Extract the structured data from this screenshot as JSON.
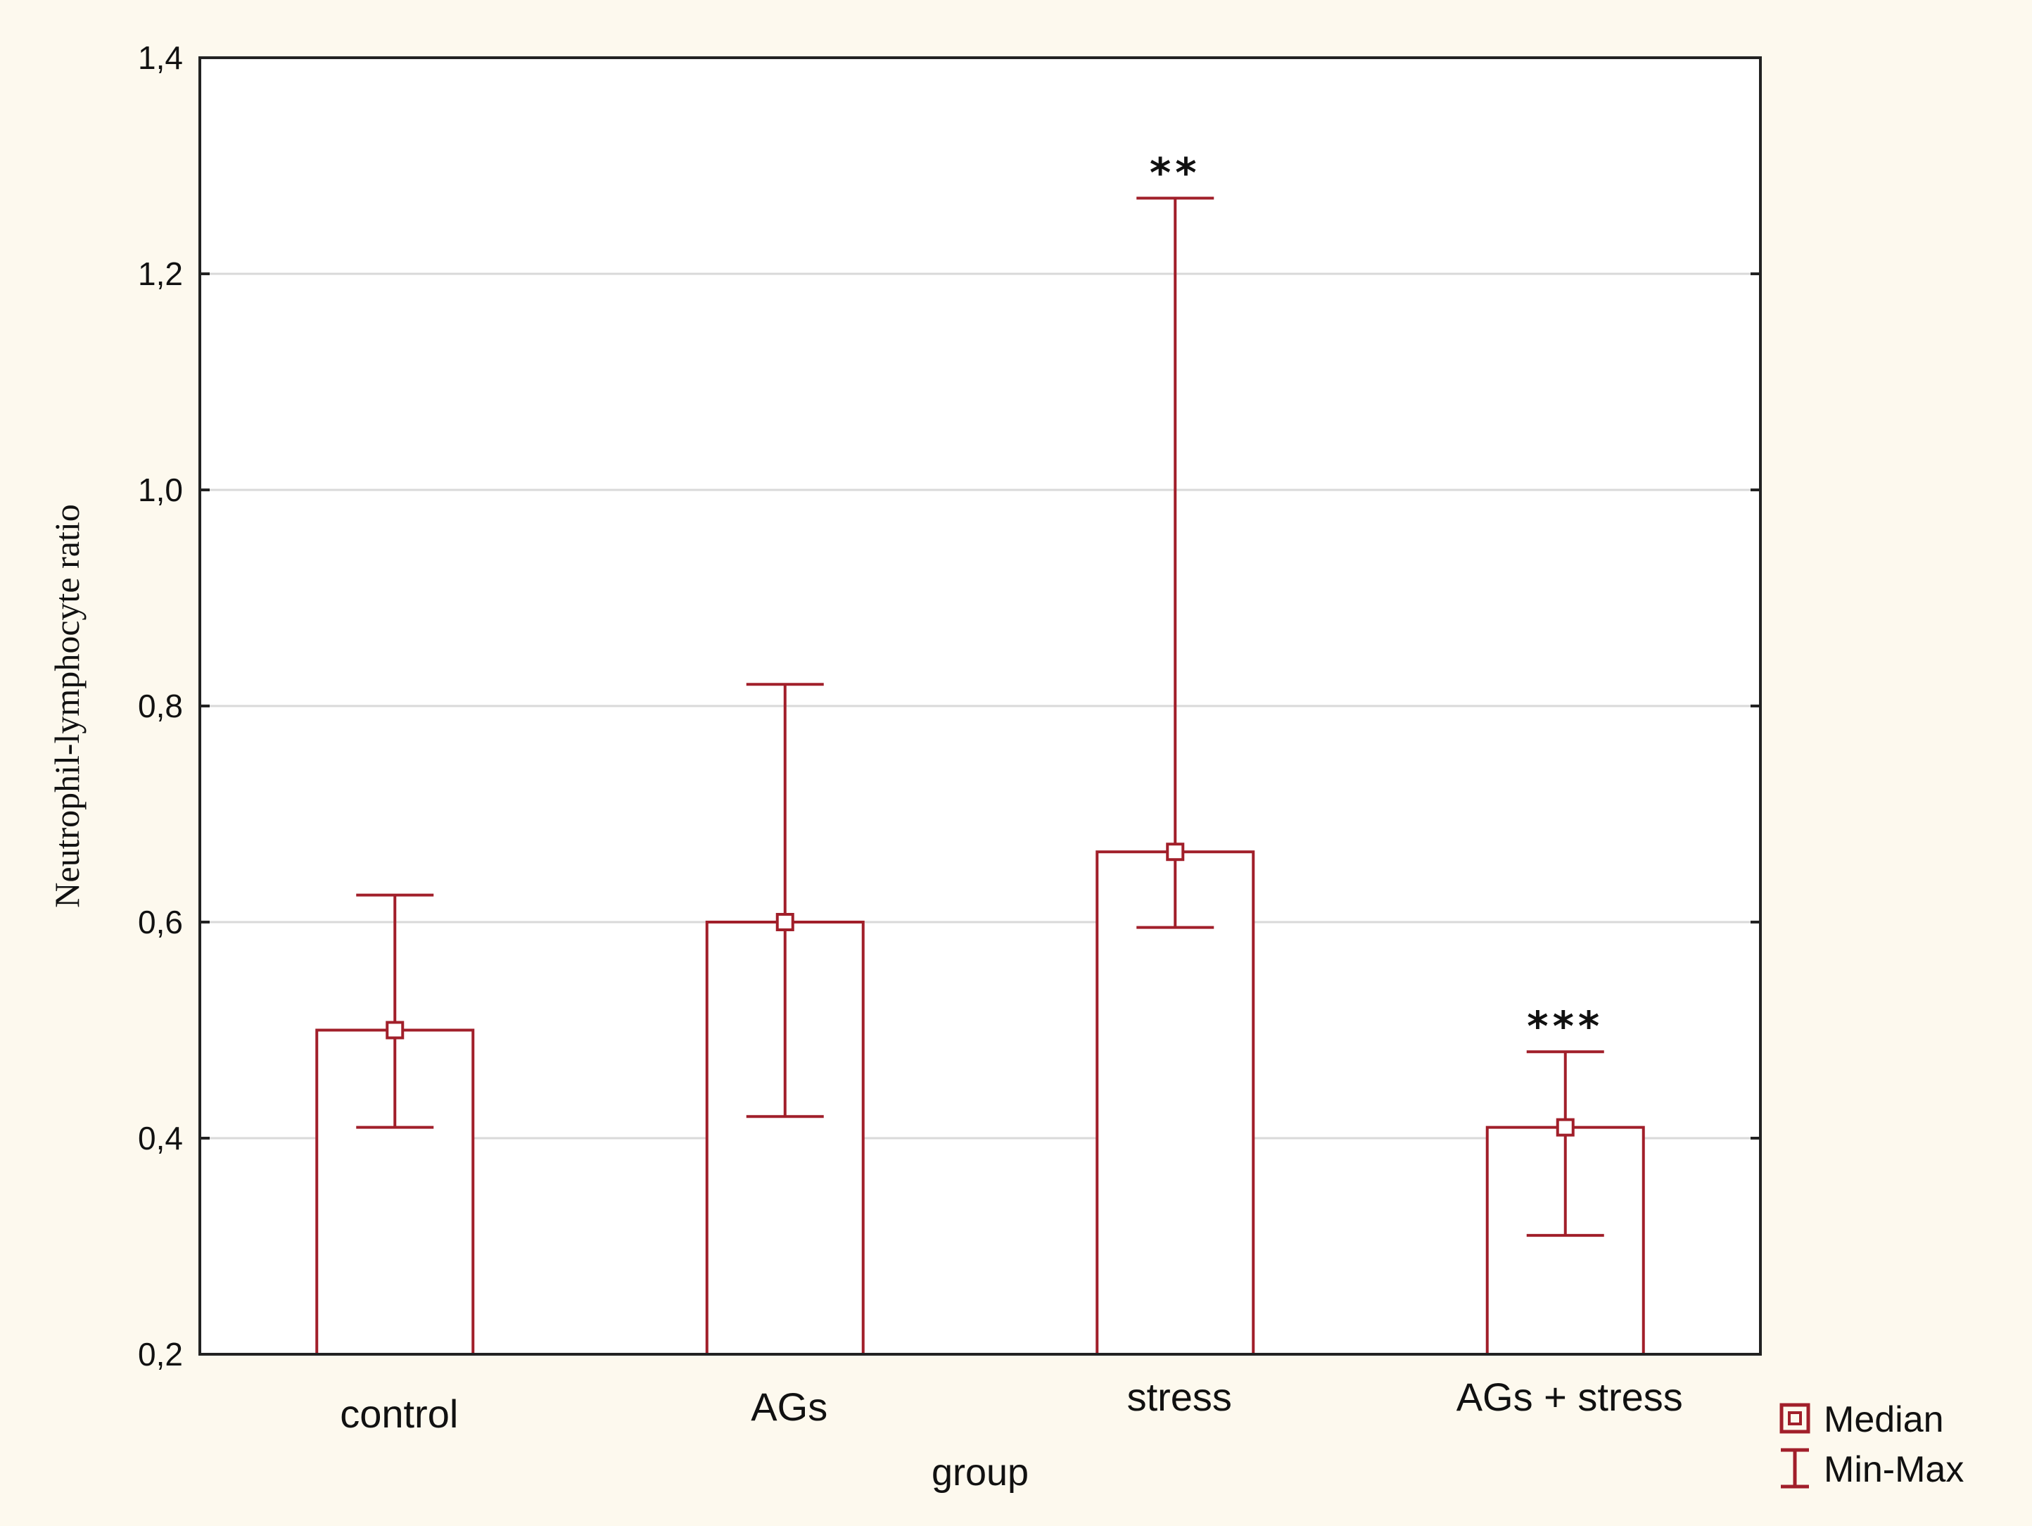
{
  "chart_data": {
    "type": "bar",
    "title": "",
    "xlabel": "group",
    "ylabel": "Neutrophil-lymphocyte ratio",
    "ylim": [
      0.2,
      1.4
    ],
    "yticks": [
      0.2,
      0.4,
      0.6,
      0.8,
      1.0,
      1.2,
      1.4
    ],
    "ytick_labels": [
      "0,2",
      "0,4",
      "0,6",
      "0,8",
      "1,0",
      "1,2",
      "1,4"
    ],
    "grid": true,
    "categories": [
      "control",
      "AGs",
      "stress",
      "AGs + stress"
    ],
    "series": [
      {
        "name": "Median",
        "values": [
          0.5,
          0.6,
          0.665,
          0.41
        ]
      },
      {
        "name": "Min-Max",
        "min": [
          0.41,
          0.42,
          0.595,
          0.31
        ],
        "max": [
          0.625,
          0.82,
          1.27,
          0.48
        ]
      }
    ],
    "annotations": [
      {
        "category": "stress",
        "text": "**"
      },
      {
        "category": "AGs + stress",
        "text": "***"
      }
    ],
    "legend": {
      "position": "bottom-right",
      "entries": [
        "Median",
        "Min-Max"
      ]
    },
    "colors": {
      "series": "#a11f2a",
      "background": "#fdf9ee",
      "plot_bg": "#ffffff",
      "grid": "#d9d9d9",
      "axis": "#222222"
    }
  }
}
